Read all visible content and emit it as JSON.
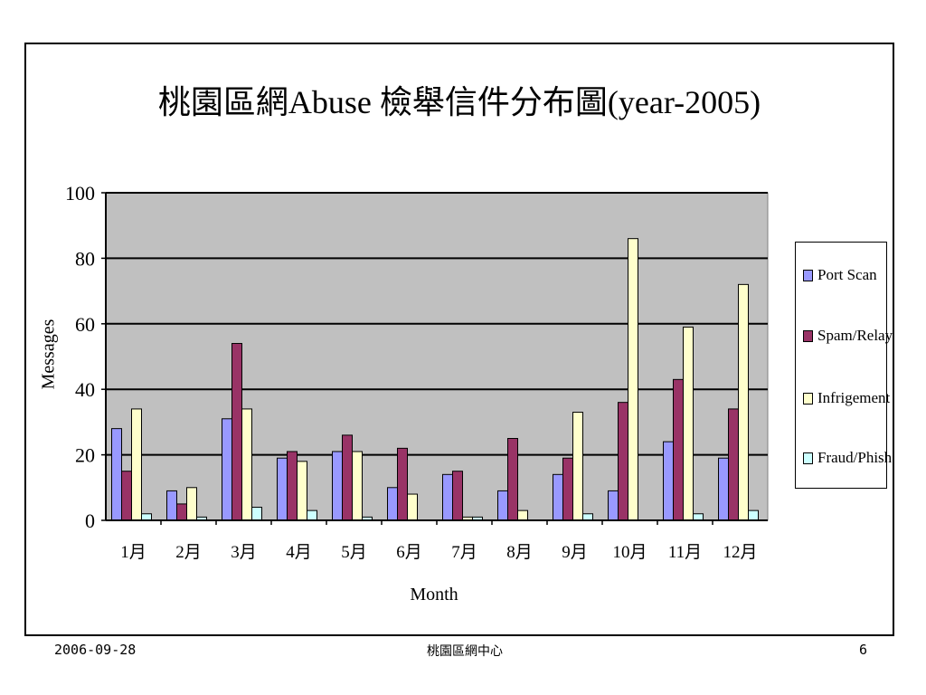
{
  "chart_data": {
    "type": "bar",
    "title": "桃園區網Abuse 檢舉信件分布圖(year-2005)",
    "xlabel": "Month",
    "ylabel": "Messages",
    "ylim": [
      0,
      100
    ],
    "yticks": [
      "0",
      "20",
      "40",
      "60",
      "80",
      "100"
    ],
    "categories": [
      "1月",
      "2月",
      "3月",
      "4月",
      "5月",
      "6月",
      "7月",
      "8月",
      "9月",
      "10月",
      "11月",
      "12月"
    ],
    "series": [
      {
        "name": "Port Scan",
        "color": "#9999ff",
        "values": [
          28,
          9,
          31,
          19,
          21,
          10,
          14,
          9,
          14,
          9,
          24,
          19
        ]
      },
      {
        "name": "Spam/Relay",
        "color": "#993366",
        "values": [
          15,
          5,
          54,
          21,
          26,
          22,
          15,
          25,
          19,
          36,
          43,
          34
        ]
      },
      {
        "name": "Infrigement",
        "color": "#ffffcc",
        "values": [
          34,
          10,
          34,
          18,
          21,
          8,
          1,
          3,
          33,
          86,
          59,
          72
        ]
      },
      {
        "name": "Fraud/Phish",
        "color": "#ccffff",
        "values": [
          2,
          1,
          4,
          3,
          1,
          0,
          1,
          0,
          2,
          0,
          2,
          3
        ]
      }
    ],
    "grid": true,
    "plot_background": "#c0c0c0",
    "legend_position": "right"
  },
  "footer": {
    "date": "2006-09-28",
    "center": "桃園區網中心",
    "page": "6"
  }
}
